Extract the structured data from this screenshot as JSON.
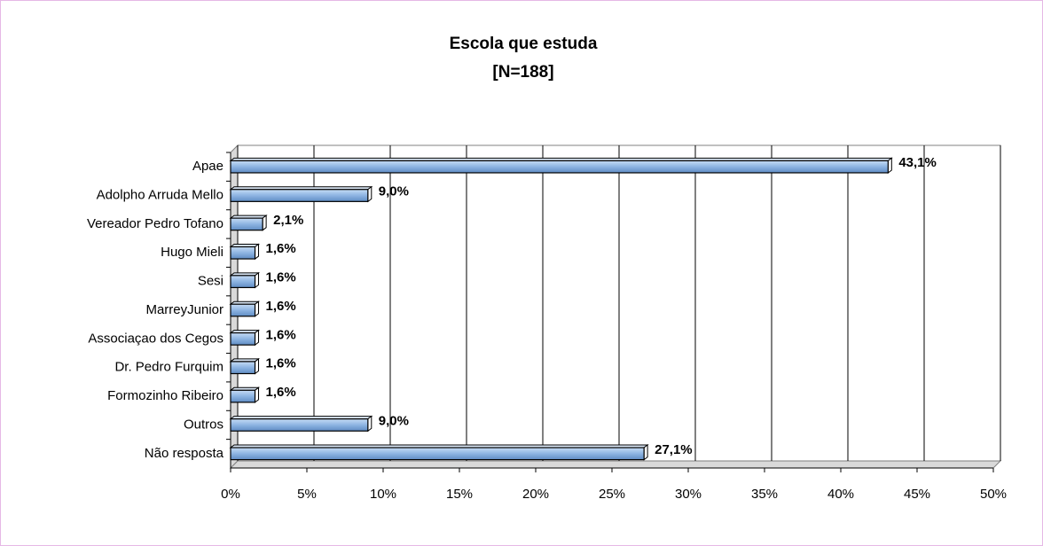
{
  "chart_data": {
    "type": "hbar",
    "title": "Escola que estuda",
    "subtitle": "[N=188]",
    "categories": [
      "Apae",
      "Adolpho Arruda Mello",
      "Vereador Pedro Tofano",
      "Hugo Mieli",
      "Sesi",
      "MarreyJunior",
      "Associaçao dos Cegos",
      "Dr. Pedro Furquim",
      "Formozinho Ribeiro",
      "Outros",
      "Não resposta"
    ],
    "values": [
      43.1,
      9.0,
      2.1,
      1.6,
      1.6,
      1.6,
      1.6,
      1.6,
      1.6,
      9.0,
      27.1
    ],
    "value_labels": [
      "43,1%",
      "9,0%",
      "2,1%",
      "1,6%",
      "1,6%",
      "1,6%",
      "1,6%",
      "1,6%",
      "1,6%",
      "9,0%",
      "27,1%"
    ],
    "color": "#8db4e2",
    "xlim": [
      0,
      50
    ],
    "xticks": [
      {
        "value": 0,
        "label": "0%"
      },
      {
        "value": 5,
        "label": "5%"
      },
      {
        "value": 10,
        "label": "10%"
      },
      {
        "value": 15,
        "label": "15%"
      },
      {
        "value": 20,
        "label": "20%"
      },
      {
        "value": 25,
        "label": "25%"
      },
      {
        "value": 30,
        "label": "30%"
      },
      {
        "value": 35,
        "label": "35%"
      },
      {
        "value": 40,
        "label": "40%"
      },
      {
        "value": 45,
        "label": "45%"
      },
      {
        "value": 50,
        "label": "50%"
      }
    ],
    "grid": true
  }
}
